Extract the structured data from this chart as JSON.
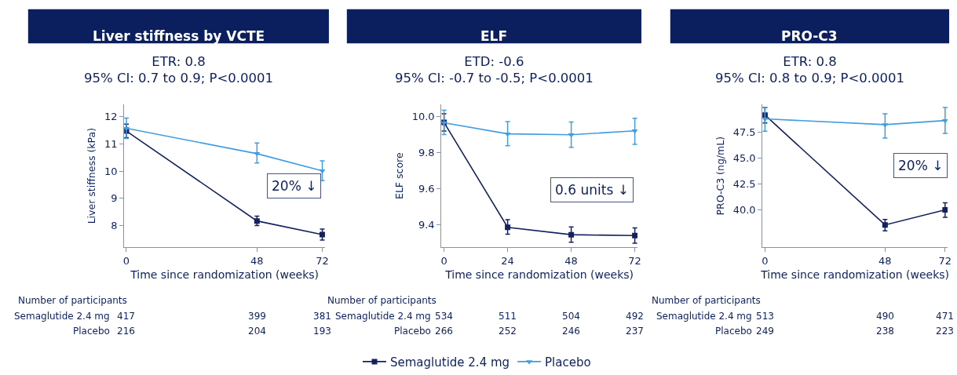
{
  "chart_data": [
    {
      "type": "line",
      "title": "Liver stiffness by VCTE",
      "subtitle": "ETR: 0.8\n95% CI: 0.7 to 0.9; P<0.0001",
      "xlabel": "Time since randomization (weeks)",
      "ylabel": "Liver stiffness (kPa)",
      "x": [
        0,
        48,
        72
      ],
      "xlim": [
        -0.8,
        73
      ],
      "xticks": [
        0,
        48,
        72
      ],
      "ylim": [
        7.2,
        12.45
      ],
      "yticks": [
        8,
        9,
        10,
        11,
        12
      ],
      "legend": "bottom",
      "line_style": "solid",
      "series": [
        {
          "name": "Semaglutide 2.4 mg",
          "color": "#14215e",
          "marker": "square",
          "values": [
            11.47,
            8.17,
            7.67
          ],
          "errors": [
            [
              11.23,
              11.72
            ],
            [
              8.0,
              8.35
            ],
            [
              7.47,
              7.87
            ]
          ]
        },
        {
          "name": "Placebo",
          "color": "#3f9de0",
          "marker": "triangle",
          "values": [
            11.57,
            10.64,
            10.01
          ],
          "errors": [
            [
              11.2,
              11.95
            ],
            [
              10.3,
              11.03
            ],
            [
              9.65,
              10.38
            ]
          ]
        }
      ],
      "annotations": [
        "20% ↓",
        "Number of participants",
        "Semaglutide 2.4 mg",
        "Placebo",
        "417",
        "399",
        "381",
        "216",
        "204",
        "193"
      ]
    },
    {
      "type": "line",
      "title": "ELF",
      "subtitle": "ETD: -0.6\n95% CI: -0.7 to -0.5; P<0.0001",
      "xlabel": "Time since randomization (weeks)",
      "ylabel": "ELF score",
      "x": [
        0,
        24,
        48,
        72
      ],
      "xlim": [
        -1.0,
        73
      ],
      "xticks": [
        0,
        24,
        48,
        72
      ],
      "ylim": [
        9.277,
        10.067
      ],
      "yticks": [
        9.4,
        9.6,
        9.8,
        {
          "value": 10.0,
          "label": "10.0"
        }
      ],
      "line_style": "solid",
      "series": [
        {
          "color": "#14215e",
          "marker": "square",
          "values": [
            9.967,
            9.388,
            9.347,
            9.342
          ],
          "errors": [
            [
              9.92,
              10.015
            ],
            [
              9.35,
              9.43
            ],
            [
              9.305,
              9.39
            ],
            [
              9.3,
              9.385
            ]
          ]
        },
        {
          "color": "#3f9de0",
          "marker": "triangle",
          "values": [
            9.965,
            9.904,
            9.899,
            9.921
          ],
          "errors": [
            [
              9.9,
              10.035
            ],
            [
              9.838,
              9.972
            ],
            [
              9.83,
              9.97
            ],
            [
              9.846,
              9.99
            ]
          ]
        }
      ],
      "annotations": [
        "0.6 units ↓",
        "Number of participants",
        "Semaglutide 2.4 mg",
        "Placebo",
        "534",
        "511",
        "504",
        "492",
        "266",
        "252",
        "246",
        "237"
      ]
    },
    {
      "type": "line",
      "title": "PRO-C3",
      "subtitle": "ETR: 0.8\n95% CI: 0.8 to 0.9; P<0.0001",
      "xlabel": "Time since randomization (weeks)",
      "ylabel": "PRO-C3 (ng/mL)",
      "x": [
        0,
        48,
        72
      ],
      "xlim": [
        -1.0,
        73
      ],
      "xticks": [
        0,
        48,
        72
      ],
      "ylim": [
        36.4,
        50.2
      ],
      "yticks": [
        {
          "value": 40,
          "label": "40.0"
        },
        42.5,
        {
          "value": 45,
          "label": "45.0"
        },
        47.5
      ],
      "line_style": "solid",
      "series": [
        {
          "color": "#14215e",
          "marker": "square",
          "values": [
            49.17,
            38.57,
            40.02
          ],
          "errors": [
            [
              48.4,
              49.88
            ],
            [
              38.0,
              39.1
            ],
            [
              39.3,
              40.7
            ]
          ]
        },
        {
          "color": "#3f9de0",
          "marker": "triangle",
          "values": [
            48.8,
            48.24,
            48.64
          ],
          "errors": [
            [
              47.6,
              49.9
            ],
            [
              46.95,
              49.3
            ],
            [
              47.4,
              49.9
            ]
          ]
        }
      ],
      "annotations": [
        "20% ↓",
        "Number of participants",
        "Semaglutide 2.4 mg",
        "Placebo",
        "513",
        "490",
        "471",
        "249",
        "238",
        "223"
      ]
    }
  ]
}
